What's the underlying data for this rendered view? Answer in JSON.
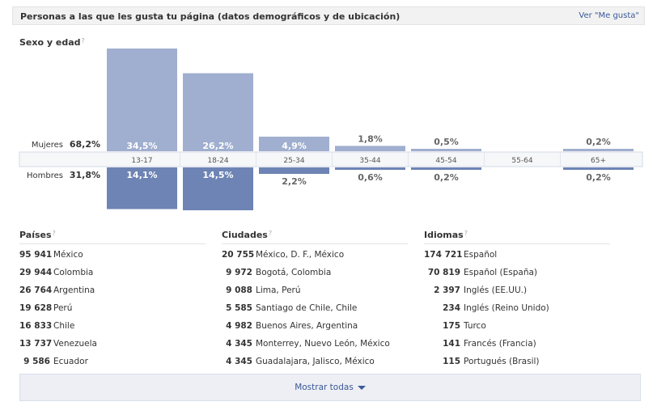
{
  "header": {
    "title": "Personas a las que les gusta tu página (datos demográficos y de ubicación)",
    "link": "Ver \"Me gusta\""
  },
  "demographics": {
    "title": "Sexo y edad",
    "help": "?",
    "women_label": "Mujeres",
    "women_pct": "68,2%",
    "men_label": "Hombres",
    "men_pct": "31,8%"
  },
  "chart_data": {
    "type": "bar",
    "title": "Sexo y edad",
    "categories": [
      "13-17",
      "18-24",
      "25-34",
      "35-44",
      "45-54",
      "55-64",
      "65+"
    ],
    "series": [
      {
        "name": "Mujeres",
        "values": [
          34.5,
          26.2,
          4.9,
          1.8,
          0.5,
          null,
          0.2
        ],
        "labels": [
          "34,5%",
          "26,2%",
          "4,9%",
          "1,8%",
          "0,5%",
          "",
          "0,2%"
        ],
        "color": "#a0afcf"
      },
      {
        "name": "Hombres",
        "values": [
          14.1,
          14.5,
          2.2,
          0.6,
          0.2,
          null,
          0.2
        ],
        "labels": [
          "14,1%",
          "14,5%",
          "2,2%",
          "0,6%",
          "0,2%",
          "",
          "0,2%"
        ],
        "color": "#6d84b4"
      }
    ]
  },
  "countries": {
    "title": "Países",
    "help": "?",
    "rows": [
      {
        "count": "95 941",
        "name": "México"
      },
      {
        "count": "29 944",
        "name": "Colombia"
      },
      {
        "count": "26 764",
        "name": "Argentina"
      },
      {
        "count": "19 628",
        "name": "Perú"
      },
      {
        "count": "16 833",
        "name": "Chile"
      },
      {
        "count": "13 737",
        "name": "Venezuela"
      },
      {
        "count": "9 586",
        "name": "Ecuador"
      }
    ]
  },
  "cities": {
    "title": "Ciudades",
    "help": "?",
    "rows": [
      {
        "count": "20 755",
        "name": "México, D. F., México"
      },
      {
        "count": "9 972",
        "name": "Bogotá, Colombia"
      },
      {
        "count": "9 088",
        "name": "Lima, Perú"
      },
      {
        "count": "5 585",
        "name": "Santiago de Chile, Chile"
      },
      {
        "count": "4 982",
        "name": "Buenos Aires, Argentina"
      },
      {
        "count": "4 345",
        "name": "Monterrey, Nuevo León, México"
      },
      {
        "count": "4 345",
        "name": "Guadalajara, Jalisco, México"
      }
    ]
  },
  "languages": {
    "title": "Idiomas",
    "help": "?",
    "rows": [
      {
        "count": "174 721",
        "name": "Español"
      },
      {
        "count": "70 819",
        "name": "Español (España)"
      },
      {
        "count": "2 397",
        "name": "Inglés (EE.UU.)"
      },
      {
        "count": "234",
        "name": "Inglés (Reino Unido)"
      },
      {
        "count": "175",
        "name": "Turco"
      },
      {
        "count": "141",
        "name": "Francés (Francia)"
      },
      {
        "count": "115",
        "name": "Portugués (Brasil)"
      }
    ]
  },
  "footer": {
    "show_all": "Mostrar todas"
  }
}
